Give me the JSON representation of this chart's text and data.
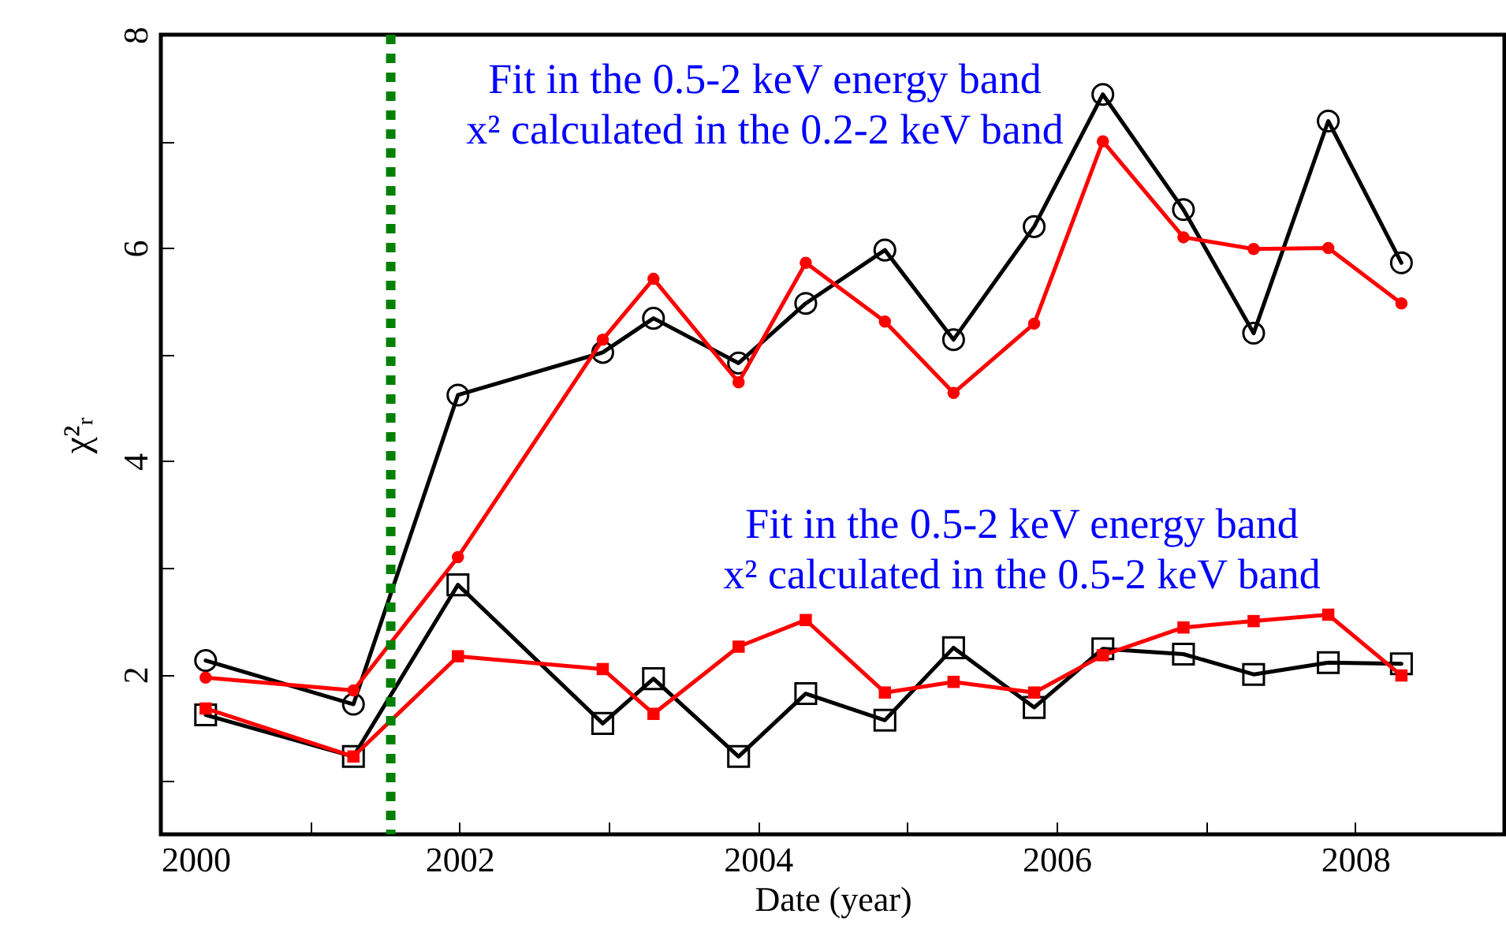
{
  "chart_data": {
    "type": "line",
    "xlabel": "Date (year)",
    "ylabel": "χ²ᵣ",
    "x": [
      2000.3,
      2001.29,
      2001.99,
      2002.96,
      2003.3,
      2003.87,
      2004.32,
      2004.85,
      2005.31,
      2005.85,
      2006.31,
      2006.85,
      2007.32,
      2007.82,
      2008.31
    ],
    "series": [
      {
        "color": "#000000",
        "marker": "circle",
        "values": [
          2.13,
          1.72,
          4.62,
          5.02,
          5.34,
          4.92,
          5.48,
          5.98,
          5.14,
          6.2,
          7.44,
          6.36,
          5.2,
          7.19,
          5.86
        ]
      },
      {
        "color": "#ff0000",
        "marker": "circle",
        "values": [
          1.97,
          1.85,
          3.1,
          5.14,
          5.71,
          4.74,
          5.86,
          5.31,
          4.64,
          5.29,
          7.0,
          6.1,
          5.99,
          6.0,
          5.48
        ]
      },
      {
        "color": "#000000",
        "marker": "square",
        "values": [
          1.62,
          1.23,
          2.84,
          1.54,
          1.96,
          1.23,
          1.82,
          1.57,
          2.25,
          1.69,
          2.24,
          2.19,
          2.0,
          2.11,
          2.1
        ]
      },
      {
        "color": "#ff0000",
        "marker": "square",
        "values": [
          1.68,
          1.23,
          2.17,
          2.05,
          1.63,
          2.26,
          2.51,
          1.83,
          1.93,
          1.83,
          2.18,
          2.44,
          2.5,
          2.56,
          1.99
        ]
      }
    ],
    "xlim": [
      2000,
      2009
    ],
    "xticks": [
      2000,
      {
        "value": 2001,
        "label": null
      },
      2002,
      {
        "value": 2003,
        "label": null
      },
      2004,
      {
        "value": 2005,
        "label": null
      },
      2006,
      {
        "value": 2007,
        "label": null
      },
      2008,
      {
        "value": 2009,
        "label": null
      }
    ],
    "ylim": [
      0.5,
      8
    ],
    "yticks": [
      {
        "value": 1,
        "label": null
      },
      2,
      {
        "value": 3,
        "label": null
      },
      4,
      {
        "value": 5,
        "label": null
      },
      6,
      {
        "value": 7,
        "label": null
      },
      8
    ],
    "ref_lines": [
      {
        "axis": "x",
        "value": 2001.54,
        "color": "#008000",
        "line_style": "dotted"
      }
    ],
    "annotations": [
      "Fit in the 0.5-2 keV energy band\nx² calculated in the 0.2-2 keV band",
      "Fit in the 0.5-2 keV energy band\nx² calculated in the 0.5-2 keV band"
    ],
    "grid": false,
    "line_style": "solid"
  }
}
